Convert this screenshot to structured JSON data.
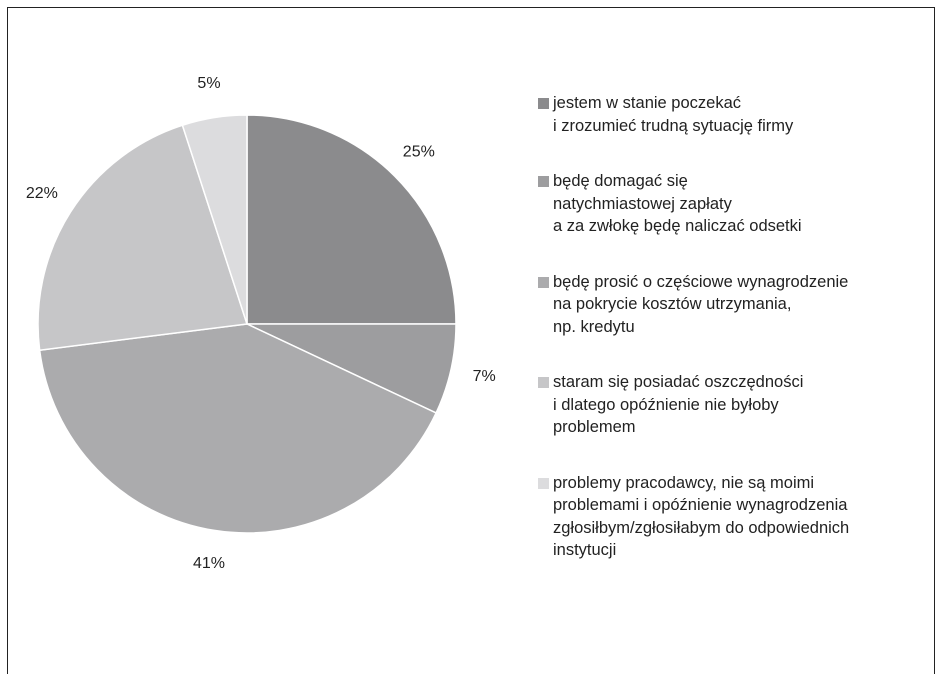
{
  "chart_data": {
    "type": "pie",
    "categories": [
      "jestem w stanie poczekać\ni zrozumieć trudną sytuację firmy",
      "będę domagać się\nnatychmiastowej zapłaty\na za zwłokę będę naliczać odsetki",
      "będę prosić o częściowe wynagrodzenie\nna pokrycie kosztów utrzymania,\nnp. kredytu",
      "staram się posiadać oszczędności\ni dlatego opóźnienie nie byłoby\nproblemem",
      "problemy pracodawcy, nie są moimi\nproblemami i opóźnienie wynagrodzenia\nzgłosiłbym/zgłosiłabym do odpowiednich\ninstytucji"
    ],
    "values": [
      25,
      7,
      41,
      22,
      5
    ],
    "value_labels": [
      "25%",
      "7%",
      "41%",
      "22%",
      "5%"
    ],
    "colors": [
      "#8b8b8d",
      "#9d9d9f",
      "#ababad",
      "#c6c6c8",
      "#dcdcde"
    ],
    "legend": "right"
  }
}
